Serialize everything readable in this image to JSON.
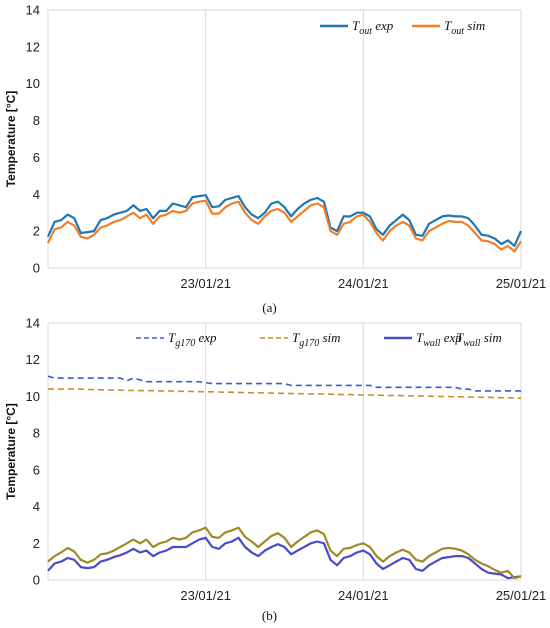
{
  "chart_data": [
    {
      "type": "line",
      "caption": "(a)",
      "ylabel": "Temperature [°C]",
      "xlabel": "",
      "ylim": [
        0,
        14
      ],
      "yticks": [
        0,
        2,
        4,
        6,
        8,
        10,
        12,
        14
      ],
      "xlim": [
        0,
        144
      ],
      "x_ticks": [
        {
          "x": 0,
          "label": ""
        },
        {
          "x": 48,
          "label": "23/01/21"
        },
        {
          "x": 96,
          "label": "24/01/21"
        },
        {
          "x": 144,
          "label": "25/01/21"
        }
      ],
      "x_step_hours": 2,
      "grid": "vertical",
      "legend": "top-right",
      "series": [
        {
          "name": "T_out exp",
          "color": "#1f77b4",
          "dash": "",
          "legend": {
            "sym": "T",
            "sub": "out",
            "rest": " exp"
          },
          "values": [
            1.7,
            2.5,
            2.6,
            2.9,
            2.7,
            1.9,
            1.95,
            2.0,
            2.6,
            2.7,
            2.9,
            3.0,
            3.1,
            3.4,
            3.1,
            3.2,
            2.7,
            3.1,
            3.1,
            3.5,
            3.4,
            3.3,
            3.85,
            3.9,
            3.95,
            3.3,
            3.35,
            3.7,
            3.8,
            3.9,
            3.3,
            2.9,
            2.7,
            3.0,
            3.5,
            3.6,
            3.3,
            2.8,
            3.2,
            3.5,
            3.7,
            3.8,
            3.6,
            2.2,
            2.0,
            2.8,
            2.8,
            3.0,
            3.0,
            2.8,
            2.1,
            1.8,
            2.3,
            2.6,
            2.9,
            2.6,
            1.8,
            1.75,
            2.4,
            2.6,
            2.8,
            2.85,
            2.8,
            2.8,
            2.7,
            2.3,
            1.8,
            1.75,
            1.6,
            1.3,
            1.5,
            1.2,
            2.0
          ]
        },
        {
          "name": "T_out sim",
          "color": "#f07f29",
          "dash": "",
          "legend": {
            "sym": "T",
            "sub": "out",
            "rest": " sim"
          },
          "values": [
            1.35,
            2.1,
            2.2,
            2.5,
            2.3,
            1.7,
            1.6,
            1.8,
            2.2,
            2.3,
            2.5,
            2.6,
            2.8,
            3.0,
            2.7,
            2.9,
            2.4,
            2.8,
            2.9,
            3.1,
            3.0,
            3.1,
            3.5,
            3.6,
            3.65,
            2.95,
            2.95,
            3.3,
            3.5,
            3.6,
            3.0,
            2.6,
            2.4,
            2.8,
            3.1,
            3.2,
            3.0,
            2.5,
            2.8,
            3.1,
            3.4,
            3.5,
            3.3,
            2.0,
            1.8,
            2.4,
            2.5,
            2.8,
            2.9,
            2.5,
            1.9,
            1.5,
            2.0,
            2.3,
            2.5,
            2.3,
            1.6,
            1.5,
            2.0,
            2.2,
            2.4,
            2.55,
            2.5,
            2.5,
            2.3,
            1.9,
            1.5,
            1.45,
            1.3,
            1.0,
            1.2,
            0.9,
            1.45
          ]
        }
      ]
    },
    {
      "type": "line",
      "caption": "(b)",
      "ylabel": "Temperature [°C]",
      "xlabel": "",
      "ylim": [
        0,
        14
      ],
      "yticks": [
        0,
        2,
        4,
        6,
        8,
        10,
        12,
        14
      ],
      "xlim": [
        0,
        144
      ],
      "x_ticks": [
        {
          "x": 0,
          "label": ""
        },
        {
          "x": 48,
          "label": "23/01/21"
        },
        {
          "x": 96,
          "label": "24/01/21"
        },
        {
          "x": 144,
          "label": "25/01/21"
        }
      ],
      "x_step_hours": 2,
      "grid": "vertical",
      "legend": "top",
      "series": [
        {
          "name": "T_g170 exp",
          "color": "#3a5cc8",
          "dash": "6,4",
          "legend": {
            "sym": "T",
            "sub": "g170",
            "rest": " exp"
          },
          "values": [
            11.1,
            11.0,
            11.0,
            11.0,
            11.0,
            11.0,
            11.0,
            11.0,
            11.0,
            11.0,
            11.0,
            11.0,
            10.85,
            11.0,
            10.9,
            10.8,
            10.8,
            10.8,
            10.8,
            10.8,
            10.8,
            10.8,
            10.8,
            10.8,
            10.75,
            10.7,
            10.7,
            10.7,
            10.7,
            10.7,
            10.7,
            10.7,
            10.7,
            10.7,
            10.7,
            10.7,
            10.7,
            10.6,
            10.6,
            10.6,
            10.6,
            10.6,
            10.6,
            10.6,
            10.6,
            10.6,
            10.6,
            10.6,
            10.6,
            10.6,
            10.5,
            10.5,
            10.5,
            10.5,
            10.5,
            10.5,
            10.5,
            10.5,
            10.5,
            10.5,
            10.5,
            10.5,
            10.5,
            10.4,
            10.4,
            10.3,
            10.3,
            10.3,
            10.3,
            10.3,
            10.3,
            10.3,
            10.3
          ]
        },
        {
          "name": "T_g170 sim",
          "color": "#c8902a",
          "dash": "6,4",
          "legend": {
            "sym": "T",
            "sub": "g170",
            "rest": " sim"
          },
          "values": [
            10.4,
            10.4,
            10.4,
            10.4,
            10.4,
            10.4,
            10.38,
            10.37,
            10.36,
            10.35,
            10.35,
            10.34,
            10.33,
            10.33,
            10.32,
            10.31,
            10.31,
            10.3,
            10.3,
            10.29,
            10.28,
            10.28,
            10.27,
            10.26,
            10.25,
            10.25,
            10.24,
            10.23,
            10.23,
            10.22,
            10.21,
            10.2,
            10.2,
            10.19,
            10.18,
            10.17,
            10.17,
            10.16,
            10.15,
            10.15,
            10.14,
            10.13,
            10.13,
            10.12,
            10.11,
            10.1,
            10.1,
            10.09,
            10.08,
            10.08,
            10.07,
            10.06,
            10.05,
            10.05,
            10.04,
            10.03,
            10.03,
            10.02,
            10.01,
            10.0,
            10.0,
            9.99,
            9.98,
            9.98,
            9.97,
            9.96,
            9.95,
            9.95,
            9.94,
            9.93,
            9.93,
            9.92,
            9.9
          ]
        },
        {
          "name": "T_wall exp",
          "color": "#4b4bc8",
          "dash": "",
          "legend": {
            "sym": "T",
            "sub": "wall",
            "rest": " exp"
          },
          "values": [
            0.5,
            0.9,
            1.0,
            1.2,
            1.1,
            0.7,
            0.65,
            0.7,
            1.0,
            1.1,
            1.25,
            1.35,
            1.5,
            1.7,
            1.5,
            1.6,
            1.3,
            1.5,
            1.6,
            1.8,
            1.8,
            1.8,
            2.0,
            2.2,
            2.3,
            1.8,
            1.7,
            2.0,
            2.1,
            2.3,
            1.8,
            1.5,
            1.3,
            1.6,
            1.8,
            1.95,
            1.8,
            1.4,
            1.6,
            1.8,
            2.0,
            2.1,
            2.0,
            1.1,
            0.8,
            1.2,
            1.3,
            1.5,
            1.6,
            1.4,
            0.9,
            0.6,
            0.8,
            1.0,
            1.2,
            1.1,
            0.6,
            0.5,
            0.8,
            1.0,
            1.2,
            1.25,
            1.3,
            1.3,
            1.2,
            0.9,
            0.6,
            0.4,
            0.35,
            0.3,
            0.1,
            0.15,
            0.2
          ]
        },
        {
          "name": "T_wall sim",
          "color": "#a08a28",
          "dash": "",
          "legend": {
            "sym": "T",
            "sub": "wall",
            "rest": " sim"
          },
          "values": [
            1.0,
            1.3,
            1.5,
            1.75,
            1.55,
            1.1,
            0.95,
            1.1,
            1.4,
            1.45,
            1.6,
            1.8,
            2.0,
            2.2,
            2.0,
            2.2,
            1.8,
            2.0,
            2.1,
            2.3,
            2.2,
            2.3,
            2.6,
            2.7,
            2.85,
            2.35,
            2.3,
            2.6,
            2.7,
            2.85,
            2.35,
            2.1,
            1.8,
            2.1,
            2.4,
            2.55,
            2.3,
            1.8,
            2.1,
            2.35,
            2.6,
            2.7,
            2.5,
            1.6,
            1.3,
            1.7,
            1.75,
            1.9,
            2.0,
            1.8,
            1.3,
            1.0,
            1.3,
            1.5,
            1.65,
            1.5,
            1.1,
            1.0,
            1.3,
            1.5,
            1.7,
            1.75,
            1.7,
            1.6,
            1.4,
            1.1,
            0.9,
            0.75,
            0.55,
            0.4,
            0.5,
            0.1,
            0.2
          ]
        }
      ]
    }
  ]
}
